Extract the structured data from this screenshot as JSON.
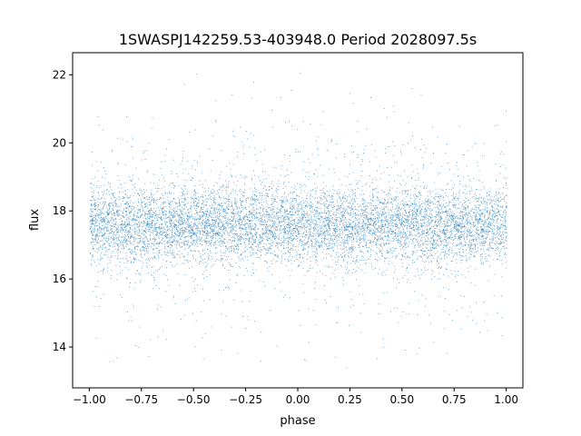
{
  "chart_data": {
    "type": "scatter",
    "title": "1SWASPJ142259.53-403948.0 Period 2028097.5s",
    "xlabel": "phase",
    "ylabel": "flux",
    "xlim": [
      -1.08,
      1.08
    ],
    "ylim": [
      12.8,
      22.65
    ],
    "xticks": [
      -1.0,
      -0.75,
      -0.5,
      -0.25,
      0.0,
      0.25,
      0.5,
      0.75,
      1.0
    ],
    "xtick_labels": [
      "−1.00",
      "−0.75",
      "−0.50",
      "−0.25",
      "0.00",
      "0.25",
      "0.50",
      "0.75",
      "1.00"
    ],
    "yticks": [
      14,
      16,
      18,
      20,
      22
    ],
    "ytick_labels": [
      "14",
      "16",
      "18",
      "20",
      "22"
    ],
    "grid": false,
    "marker_color": "#1f77b4",
    "series": [
      {
        "description_points": "phase-folded light curve, phase -1.00 to 1.00, dense band centered near flux 17.6",
        "phase_range": [
          -1.0,
          1.0
        ],
        "core_flux_range": [
          16.5,
          18.8
        ],
        "median_flux": 17.6,
        "flux_extent": [
          13.3,
          22.2
        ]
      }
    ]
  }
}
